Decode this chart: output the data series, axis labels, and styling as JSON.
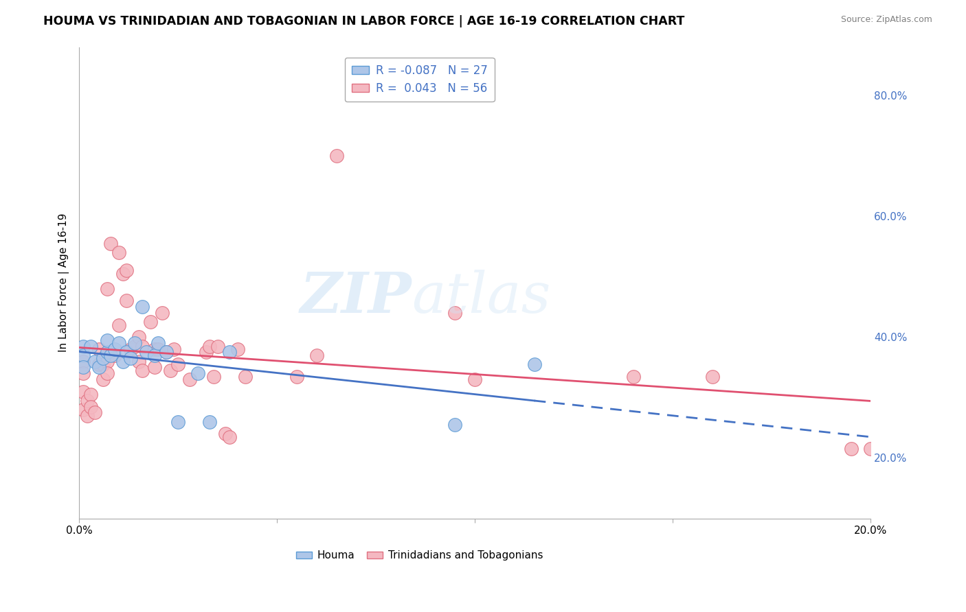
{
  "title": "HOUMA VS TRINIDADIAN AND TOBAGONIAN IN LABOR FORCE | AGE 16-19 CORRELATION CHART",
  "source": "Source: ZipAtlas.com",
  "ylabel": "In Labor Force | Age 16-19",
  "xlim": [
    0.0,
    0.2
  ],
  "ylim": [
    0.1,
    0.88
  ],
  "xticks": [
    0.0,
    0.05,
    0.1,
    0.15,
    0.2
  ],
  "xtick_labels": [
    "0.0%",
    "",
    "",
    "",
    "20.0%"
  ],
  "ytick_labels_right": [
    "20.0%",
    "40.0%",
    "60.0%",
    "80.0%"
  ],
  "ytick_vals_right": [
    0.2,
    0.4,
    0.6,
    0.8
  ],
  "legend_R1": "-0.087",
  "legend_N1": "27",
  "legend_R2": "0.043",
  "legend_N2": "56",
  "houma_color": "#aec6e8",
  "houma_edge_color": "#5b9bd5",
  "trini_color": "#f4b8c1",
  "trini_edge_color": "#e07080",
  "regression_blue": "#4472c4",
  "regression_pink": "#e05070",
  "background_color": "#ffffff",
  "grid_color": "#cccccc",
  "houma_x": [
    0.001,
    0.001,
    0.001,
    0.003,
    0.004,
    0.005,
    0.006,
    0.007,
    0.007,
    0.008,
    0.009,
    0.01,
    0.011,
    0.012,
    0.013,
    0.014,
    0.016,
    0.017,
    0.019,
    0.02,
    0.022,
    0.025,
    0.03,
    0.033,
    0.038,
    0.095,
    0.115
  ],
  "houma_y": [
    0.385,
    0.37,
    0.35,
    0.385,
    0.36,
    0.35,
    0.365,
    0.375,
    0.395,
    0.37,
    0.38,
    0.39,
    0.36,
    0.375,
    0.365,
    0.39,
    0.45,
    0.375,
    0.37,
    0.39,
    0.375,
    0.26,
    0.34,
    0.26,
    0.375,
    0.255,
    0.355
  ],
  "trini_x": [
    0.001,
    0.001,
    0.001,
    0.001,
    0.002,
    0.002,
    0.003,
    0.003,
    0.004,
    0.005,
    0.005,
    0.006,
    0.006,
    0.007,
    0.007,
    0.007,
    0.008,
    0.009,
    0.01,
    0.01,
    0.011,
    0.012,
    0.012,
    0.013,
    0.014,
    0.015,
    0.015,
    0.016,
    0.016,
    0.018,
    0.019,
    0.019,
    0.02,
    0.021,
    0.022,
    0.023,
    0.024,
    0.025,
    0.028,
    0.032,
    0.033,
    0.034,
    0.035,
    0.037,
    0.038,
    0.04,
    0.042,
    0.055,
    0.06,
    0.065,
    0.095,
    0.1,
    0.14,
    0.16,
    0.195,
    0.2
  ],
  "trini_y": [
    0.36,
    0.34,
    0.31,
    0.28,
    0.295,
    0.27,
    0.305,
    0.285,
    0.275,
    0.38,
    0.355,
    0.355,
    0.33,
    0.48,
    0.36,
    0.34,
    0.555,
    0.37,
    0.54,
    0.42,
    0.505,
    0.51,
    0.46,
    0.38,
    0.385,
    0.4,
    0.36,
    0.385,
    0.345,
    0.425,
    0.38,
    0.35,
    0.38,
    0.44,
    0.375,
    0.345,
    0.38,
    0.355,
    0.33,
    0.375,
    0.385,
    0.335,
    0.385,
    0.24,
    0.235,
    0.38,
    0.335,
    0.335,
    0.37,
    0.7,
    0.44,
    0.33,
    0.335,
    0.335,
    0.215,
    0.215
  ]
}
